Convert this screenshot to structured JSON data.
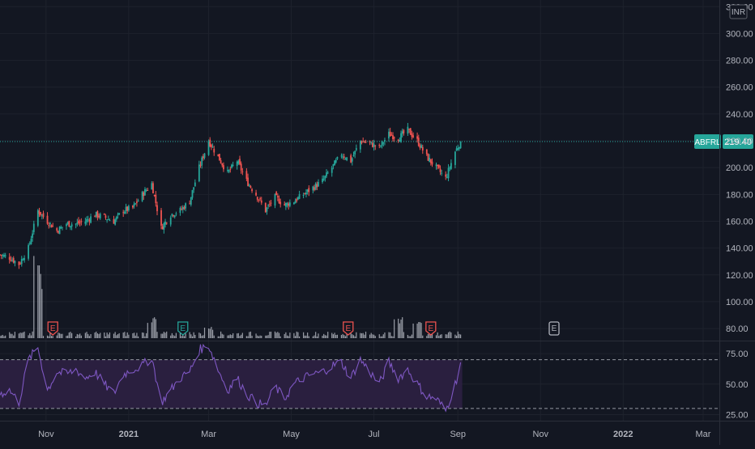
{
  "chart_data": {
    "type": "candlestick",
    "symbol": "ABFRL",
    "currency": "INR",
    "last_price": "219.40",
    "price_axis": {
      "ylim": [
        71,
        325
      ],
      "ticks": [
        "320.00",
        "300.00",
        "280.00",
        "260.00",
        "240.00",
        "220.00",
        "200.00",
        "180.00",
        "160.00",
        "140.00",
        "120.00",
        "100.00",
        "80.00"
      ]
    },
    "rsi_axis": {
      "ylim": [
        20,
        85
      ],
      "ticks": [
        "75.00",
        "50.00",
        "25.00"
      ],
      "band": [
        30,
        70
      ]
    },
    "time_axis": {
      "start": "2020-09-28",
      "end": "2022-03-07",
      "ticks": [
        {
          "label": "Nov",
          "date": "2020-11-01",
          "bold": false
        },
        {
          "label": "2021",
          "date": "2021-01-01",
          "bold": true
        },
        {
          "label": "Mar",
          "date": "2021-03-01",
          "bold": false
        },
        {
          "label": "May",
          "date": "2021-05-01",
          "bold": false
        },
        {
          "label": "Jul",
          "date": "2021-07-01",
          "bold": false
        },
        {
          "label": "Sep",
          "date": "2021-09-01",
          "bold": false
        },
        {
          "label": "Nov",
          "date": "2021-11-01",
          "bold": false
        },
        {
          "label": "2022",
          "date": "2022-01-01",
          "bold": true
        },
        {
          "label": "Mar",
          "date": "2022-03-01",
          "bold": false
        }
      ]
    },
    "price_path": [
      {
        "date": "2020-09-28",
        "close": 135
      },
      {
        "date": "2020-10-05",
        "close": 133
      },
      {
        "date": "2020-10-12",
        "close": 128
      },
      {
        "date": "2020-10-19",
        "close": 140
      },
      {
        "date": "2020-10-26",
        "close": 168
      },
      {
        "date": "2020-11-02",
        "close": 160
      },
      {
        "date": "2020-11-09",
        "close": 153
      },
      {
        "date": "2020-11-16",
        "close": 158
      },
      {
        "date": "2020-11-23",
        "close": 158
      },
      {
        "date": "2020-11-30",
        "close": 160
      },
      {
        "date": "2020-12-07",
        "close": 165
      },
      {
        "date": "2020-12-14",
        "close": 163
      },
      {
        "date": "2020-12-21",
        "close": 160
      },
      {
        "date": "2020-12-28",
        "close": 168
      },
      {
        "date": "2021-01-04",
        "close": 170
      },
      {
        "date": "2021-01-11",
        "close": 180
      },
      {
        "date": "2021-01-18",
        "close": 188
      },
      {
        "date": "2021-01-25",
        "close": 155
      },
      {
        "date": "2021-02-01",
        "close": 165
      },
      {
        "date": "2021-02-08",
        "close": 168
      },
      {
        "date": "2021-02-15",
        "close": 175
      },
      {
        "date": "2021-02-22",
        "close": 200
      },
      {
        "date": "2021-03-01",
        "close": 220
      },
      {
        "date": "2021-03-08",
        "close": 208
      },
      {
        "date": "2021-03-15",
        "close": 196
      },
      {
        "date": "2021-03-22",
        "close": 205
      },
      {
        "date": "2021-03-29",
        "close": 190
      },
      {
        "date": "2021-04-05",
        "close": 180
      },
      {
        "date": "2021-04-12",
        "close": 168
      },
      {
        "date": "2021-04-19",
        "close": 178
      },
      {
        "date": "2021-04-26",
        "close": 172
      },
      {
        "date": "2021-05-03",
        "close": 175
      },
      {
        "date": "2021-05-10",
        "close": 180
      },
      {
        "date": "2021-05-17",
        "close": 185
      },
      {
        "date": "2021-05-24",
        "close": 190
      },
      {
        "date": "2021-05-31",
        "close": 200
      },
      {
        "date": "2021-06-07",
        "close": 210
      },
      {
        "date": "2021-06-14",
        "close": 205
      },
      {
        "date": "2021-06-21",
        "close": 220
      },
      {
        "date": "2021-06-28",
        "close": 218
      },
      {
        "date": "2021-07-05",
        "close": 215
      },
      {
        "date": "2021-07-12",
        "close": 225
      },
      {
        "date": "2021-07-19",
        "close": 222
      },
      {
        "date": "2021-07-26",
        "close": 228
      },
      {
        "date": "2021-08-02",
        "close": 220
      },
      {
        "date": "2021-08-09",
        "close": 208
      },
      {
        "date": "2021-08-16",
        "close": 200
      },
      {
        "date": "2021-08-23",
        "close": 192
      },
      {
        "date": "2021-08-30",
        "close": 212
      },
      {
        "date": "2021-09-03",
        "close": 219.4
      }
    ],
    "rsi_path": [
      {
        "date": "2020-09-28",
        "value": 42
      },
      {
        "date": "2020-10-05",
        "value": 45
      },
      {
        "date": "2020-10-12",
        "value": 35
      },
      {
        "date": "2020-10-19",
        "value": 70
      },
      {
        "date": "2020-10-26",
        "value": 80
      },
      {
        "date": "2020-11-02",
        "value": 45
      },
      {
        "date": "2020-11-09",
        "value": 60
      },
      {
        "date": "2020-11-16",
        "value": 58
      },
      {
        "date": "2020-11-23",
        "value": 62
      },
      {
        "date": "2020-11-30",
        "value": 55
      },
      {
        "date": "2020-12-07",
        "value": 60
      },
      {
        "date": "2020-12-14",
        "value": 50
      },
      {
        "date": "2020-12-21",
        "value": 42
      },
      {
        "date": "2020-12-28",
        "value": 58
      },
      {
        "date": "2021-01-04",
        "value": 62
      },
      {
        "date": "2021-01-11",
        "value": 65
      },
      {
        "date": "2021-01-18",
        "value": 72
      },
      {
        "date": "2021-01-25",
        "value": 35
      },
      {
        "date": "2021-02-01",
        "value": 45
      },
      {
        "date": "2021-02-08",
        "value": 55
      },
      {
        "date": "2021-02-15",
        "value": 60
      },
      {
        "date": "2021-02-22",
        "value": 78
      },
      {
        "date": "2021-03-01",
        "value": 82
      },
      {
        "date": "2021-03-08",
        "value": 62
      },
      {
        "date": "2021-03-15",
        "value": 45
      },
      {
        "date": "2021-03-22",
        "value": 55
      },
      {
        "date": "2021-03-29",
        "value": 42
      },
      {
        "date": "2021-04-05",
        "value": 35
      },
      {
        "date": "2021-04-12",
        "value": 32
      },
      {
        "date": "2021-04-19",
        "value": 48
      },
      {
        "date": "2021-04-26",
        "value": 38
      },
      {
        "date": "2021-05-03",
        "value": 50
      },
      {
        "date": "2021-05-10",
        "value": 55
      },
      {
        "date": "2021-05-17",
        "value": 58
      },
      {
        "date": "2021-05-24",
        "value": 60
      },
      {
        "date": "2021-05-31",
        "value": 65
      },
      {
        "date": "2021-06-07",
        "value": 68
      },
      {
        "date": "2021-06-14",
        "value": 55
      },
      {
        "date": "2021-06-21",
        "value": 70
      },
      {
        "date": "2021-06-28",
        "value": 60
      },
      {
        "date": "2021-07-05",
        "value": 50
      },
      {
        "date": "2021-07-12",
        "value": 68
      },
      {
        "date": "2021-07-19",
        "value": 55
      },
      {
        "date": "2021-07-26",
        "value": 62
      },
      {
        "date": "2021-08-02",
        "value": 50
      },
      {
        "date": "2021-08-09",
        "value": 40
      },
      {
        "date": "2021-08-16",
        "value": 38
      },
      {
        "date": "2021-08-23",
        "value": 28
      },
      {
        "date": "2021-08-30",
        "value": 50
      },
      {
        "date": "2021-09-03",
        "value": 66
      }
    ],
    "volume_spikes": [
      {
        "date": "2020-10-26",
        "level": 1.0
      },
      {
        "date": "2021-01-18",
        "level": 0.28
      },
      {
        "date": "2021-03-01",
        "level": 0.18
      },
      {
        "date": "2021-07-19",
        "level": 0.32
      },
      {
        "date": "2021-08-02",
        "level": 0.26
      }
    ],
    "earnings_markers": [
      {
        "date": "2020-11-06",
        "label": "E",
        "style": "negative"
      },
      {
        "date": "2021-02-10",
        "label": "E",
        "style": "positive"
      },
      {
        "date": "2021-06-12",
        "label": "E",
        "style": "negative"
      },
      {
        "date": "2021-08-12",
        "label": "E",
        "style": "negative"
      },
      {
        "date": "2021-11-11",
        "label": "E",
        "style": "upcoming"
      }
    ],
    "colors": {
      "background": "#131722",
      "grid": "#1e222d",
      "up": "#26a69a",
      "down": "#ef5350",
      "volume": "#b2b5be",
      "rsi_line": "#7e57c2",
      "rsi_band": "#2a1f3f",
      "price_label": "#26a69a",
      "axis_text": "#b2b5be"
    }
  }
}
